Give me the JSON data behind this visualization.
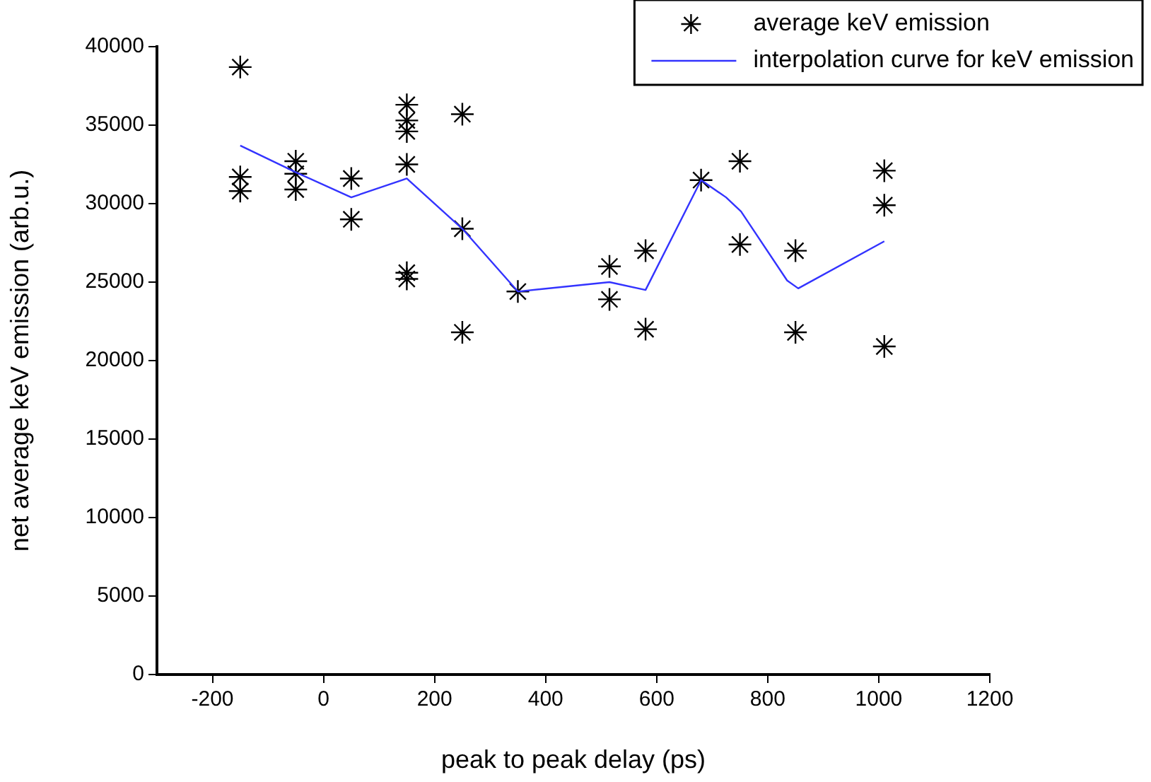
{
  "chart_data": {
    "type": "scatter",
    "xlabel": "peak to peak delay (ps)",
    "ylabel": "net average keV emission (arb.u.)",
    "xlim": [
      -300,
      1200
    ],
    "xticks": [
      -200,
      0,
      200,
      400,
      600,
      800,
      1000,
      1200
    ],
    "ylim": [
      0,
      40000
    ],
    "yticks": [
      0,
      5000,
      10000,
      15000,
      20000,
      25000,
      30000,
      35000,
      40000
    ],
    "grid": false,
    "legend": "top right",
    "marker": "cross",
    "series": [
      {
        "name": "average keV emission",
        "type": "scatter",
        "color": "#000000",
        "x": [
          -150,
          -150,
          -150,
          -50,
          -50,
          -50,
          50,
          50,
          150,
          150,
          150,
          150,
          150,
          150,
          250,
          250,
          250,
          350,
          515,
          515,
          580,
          580,
          680,
          750,
          750,
          850,
          850,
          1010,
          1010,
          1010
        ],
        "values": [
          38700,
          31700,
          30800,
          32700,
          31900,
          30900,
          31600,
          29000,
          36300,
          35300,
          34600,
          32500,
          25600,
          25200,
          35700,
          28400,
          21800,
          24400,
          26000,
          23900,
          27000,
          22000,
          31500,
          32700,
          27400,
          27000,
          21800,
          32100,
          29900,
          20900
        ]
      },
      {
        "name": "interpolation curve for keV emission",
        "type": "line",
        "color": "#3333ff",
        "marker": "none",
        "x": [
          -150,
          -50,
          50,
          150,
          250,
          350,
          515,
          580,
          680,
          725,
          752,
          835,
          855,
          1010
        ],
        "values": [
          33700,
          32000,
          30400,
          31600,
          28400,
          24400,
          25000,
          24500,
          31500,
          30400,
          29500,
          25100,
          24600,
          27600
        ]
      }
    ]
  }
}
